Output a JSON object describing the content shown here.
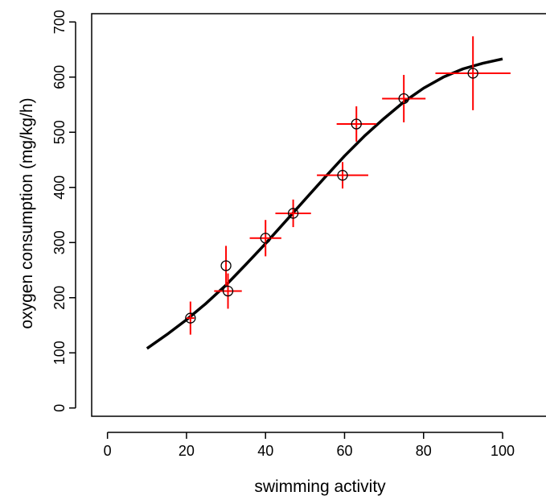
{
  "chart_data": {
    "type": "scatter",
    "title": "",
    "xlabel": "swimming activity",
    "ylabel": "oxygen consumption (mg/kg/h)",
    "xlim": [
      -4,
      112
    ],
    "ylim": [
      -15,
      715
    ],
    "xticks": [
      0,
      20,
      40,
      60,
      80,
      100
    ],
    "yticks": [
      0,
      100,
      200,
      300,
      400,
      500,
      600,
      700
    ],
    "grid": false,
    "legend": "none",
    "points": [
      {
        "x": 21,
        "y": 163,
        "xerr": 1,
        "yerr": 30
      },
      {
        "x": 30,
        "y": 258,
        "xerr": 0,
        "yerr": 36
      },
      {
        "x": 30.5,
        "y": 212,
        "xerr": 3.5,
        "yerr": 32
      },
      {
        "x": 40,
        "y": 308,
        "xerr": 4,
        "yerr": 33
      },
      {
        "x": 47,
        "y": 353,
        "xerr": 4.5,
        "yerr": 25
      },
      {
        "x": 59.5,
        "y": 422,
        "xerr": 6.5,
        "yerr": 24
      },
      {
        "x": 63,
        "y": 515,
        "xerr": 5,
        "yerr": 32
      },
      {
        "x": 75,
        "y": 561,
        "xerr": 5.5,
        "yerr": 43
      },
      {
        "x": 92.5,
        "y": 607,
        "xerr": 9.5,
        "yerr": 67
      }
    ],
    "fit_curve": {
      "x": [
        10,
        15,
        20,
        25,
        30,
        35,
        40,
        45,
        50,
        55,
        60,
        65,
        70,
        75,
        80,
        85,
        90,
        95,
        100
      ],
      "y": [
        108,
        133,
        160,
        190,
        223,
        260,
        298,
        338,
        378,
        418,
        457,
        493,
        525,
        555,
        580,
        600,
        615,
        625,
        633
      ]
    },
    "colors": {
      "points": "#000000",
      "error_bars": "#ff0000",
      "fit_curve": "#000000",
      "axes": "#000000"
    }
  }
}
